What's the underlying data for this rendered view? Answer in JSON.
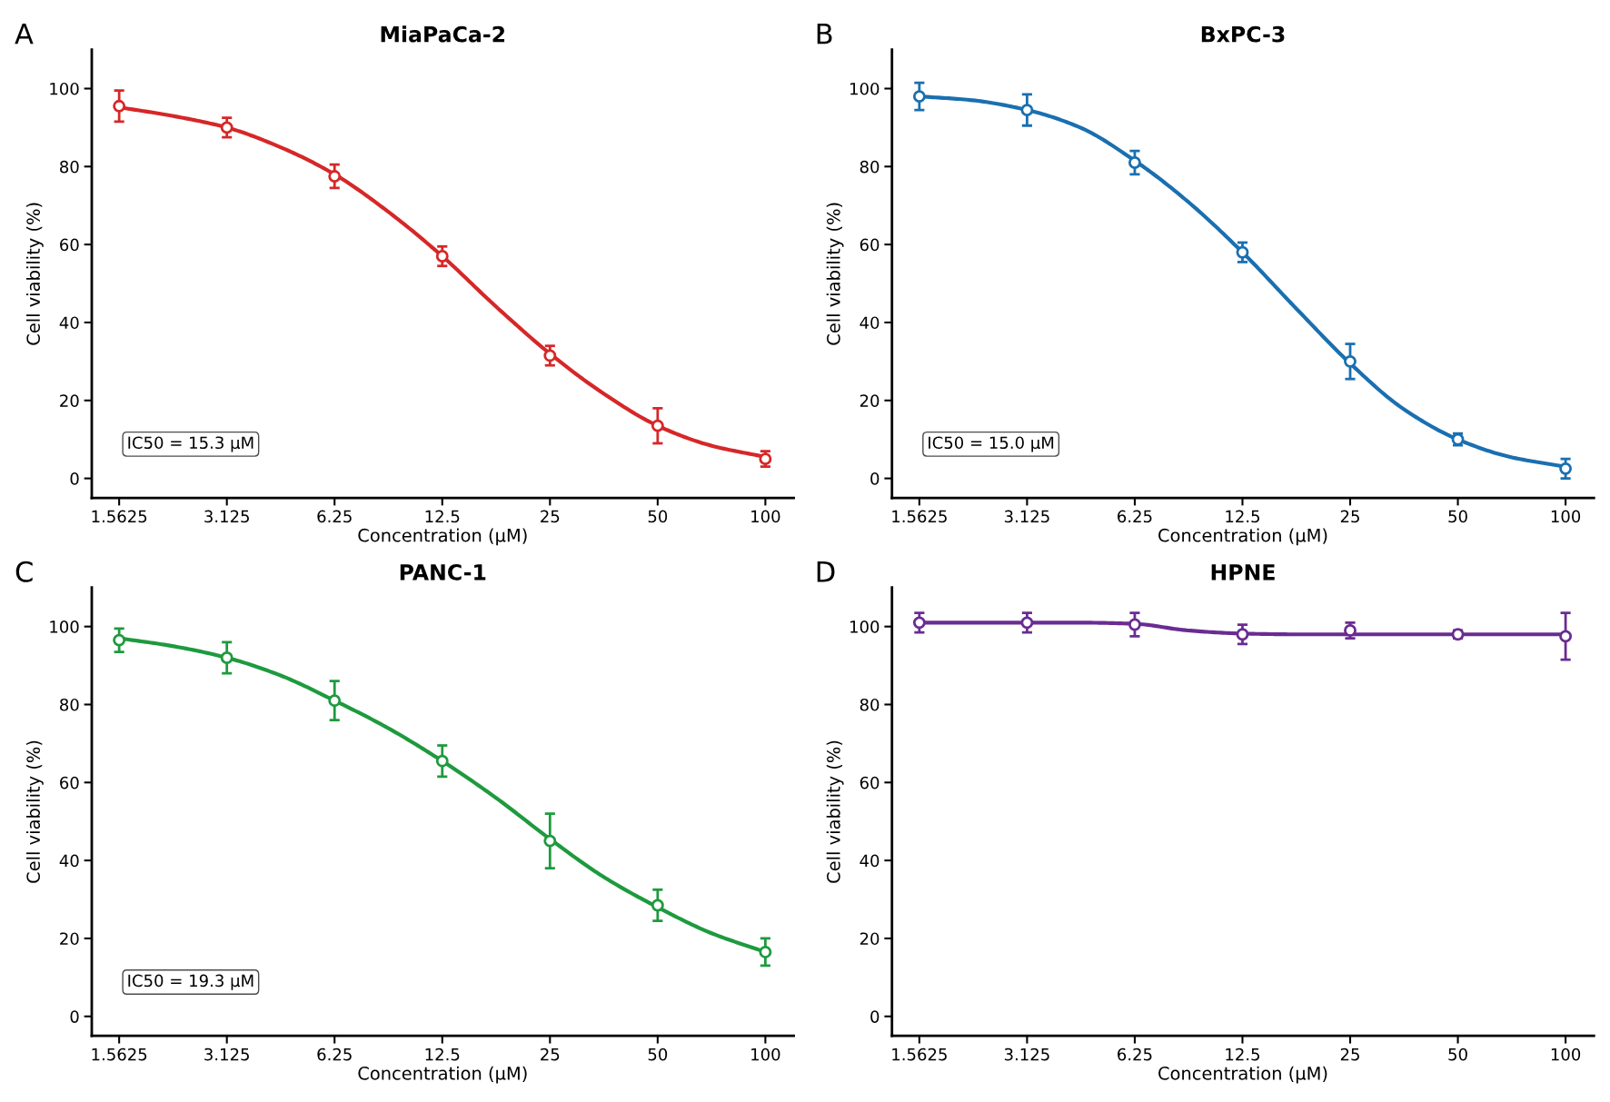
{
  "chart_data": [
    {
      "type": "scatter",
      "title": "MiaPaCa-2",
      "xlabel": "Concentration (μM)",
      "ylabel": "Cell viability (%)",
      "annotations": [
        "A",
        "IC50 = 15.3 μM"
      ],
      "log": "x",
      "xlim": [
        1.31,
        120
      ],
      "xticks": [
        1.5625,
        3.125,
        6.25,
        12.5,
        25,
        50,
        100
      ],
      "ylim": [
        -5,
        110
      ],
      "yticks": [
        0,
        20,
        40,
        60,
        80,
        100
      ],
      "grid": false,
      "series": [
        {
          "marker": "circle",
          "color": "#d62728",
          "x": [
            1.5625,
            3.125,
            6.25,
            12.5,
            25,
            50,
            100
          ],
          "values": [
            95.5,
            90,
            77.5,
            57,
            31.5,
            13.5,
            5
          ],
          "errors": [
            4,
            2.5,
            3,
            2.5,
            2.5,
            4.5,
            2
          ]
        },
        {
          "type": "line",
          "color": "#d62728",
          "line_style": "solid",
          "x": [
            1.5625,
            2.2,
            3.125,
            4.4,
            6.25,
            8.8,
            12.5,
            17.7,
            25,
            35,
            50,
            70,
            100
          ],
          "values": [
            95.2,
            93,
            90,
            85,
            78,
            68.5,
            57,
            44,
            32,
            22,
            13.5,
            8.5,
            5.5
          ]
        }
      ]
    },
    {
      "type": "scatter",
      "title": "BxPC-3",
      "xlabel": "Concentration (μM)",
      "ylabel": "Cell viability (%)",
      "annotations": [
        "B",
        "IC50 = 15.0 μM"
      ],
      "log": "x",
      "xlim": [
        1.31,
        120
      ],
      "xticks": [
        1.5625,
        3.125,
        6.25,
        12.5,
        25,
        50,
        100
      ],
      "ylim": [
        -5,
        110
      ],
      "yticks": [
        0,
        20,
        40,
        60,
        80,
        100
      ],
      "grid": false,
      "series": [
        {
          "marker": "circle",
          "color": "#1a6fb0",
          "x": [
            1.5625,
            3.125,
            6.25,
            12.5,
            25,
            50,
            100
          ],
          "values": [
            98,
            94.5,
            81,
            58,
            30,
            10,
            2.5
          ],
          "errors": [
            3.5,
            4,
            3,
            2.5,
            4.5,
            1.5,
            2.5
          ]
        },
        {
          "type": "line",
          "color": "#1a6fb0",
          "line_style": "solid",
          "x": [
            1.5625,
            2.2,
            3.125,
            4.4,
            6.25,
            8.8,
            12.5,
            17.7,
            25,
            35,
            50,
            70,
            100
          ],
          "values": [
            98,
            97,
            94.5,
            90,
            81.5,
            71,
            58,
            43.5,
            29.5,
            18,
            10,
            5.5,
            3
          ]
        }
      ]
    },
    {
      "type": "scatter",
      "title": "PANC-1",
      "xlabel": "Concentration (μM)",
      "ylabel": "Cell viability (%)",
      "annotations": [
        "C",
        "IC50 = 19.3 μM"
      ],
      "log": "x",
      "xlim": [
        1.31,
        120
      ],
      "xticks": [
        1.5625,
        3.125,
        6.25,
        12.5,
        25,
        50,
        100
      ],
      "ylim": [
        -5,
        110
      ],
      "yticks": [
        0,
        20,
        40,
        60,
        80,
        100
      ],
      "grid": false,
      "series": [
        {
          "marker": "circle",
          "color": "#1e9a3e",
          "x": [
            1.5625,
            3.125,
            6.25,
            12.5,
            25,
            50,
            100
          ],
          "values": [
            96.5,
            92,
            81,
            65.5,
            45,
            28.5,
            16.5
          ],
          "errors": [
            3,
            4,
            5,
            4,
            7,
            4,
            3.5
          ]
        },
        {
          "type": "line",
          "color": "#1e9a3e",
          "line_style": "solid",
          "x": [
            1.5625,
            2.2,
            3.125,
            4.4,
            6.25,
            8.8,
            12.5,
            17.7,
            25,
            35,
            50,
            70,
            100
          ],
          "values": [
            97,
            95,
            92,
            87.5,
            81,
            74,
            65.5,
            56,
            45.5,
            36,
            28,
            21.5,
            16.5
          ]
        }
      ]
    },
    {
      "type": "scatter",
      "title": "HPNE",
      "xlabel": "Concentration (μM)",
      "ylabel": "Cell viability (%)",
      "annotations": [
        "D"
      ],
      "log": "x",
      "xlim": [
        1.31,
        120
      ],
      "xticks": [
        1.5625,
        3.125,
        6.25,
        12.5,
        25,
        50,
        100
      ],
      "ylim": [
        -5,
        110
      ],
      "yticks": [
        0,
        20,
        40,
        60,
        80,
        100
      ],
      "grid": false,
      "series": [
        {
          "marker": "circle",
          "color": "#6a2c91",
          "x": [
            1.5625,
            3.125,
            6.25,
            12.5,
            25,
            50,
            100
          ],
          "values": [
            101,
            101,
            100.5,
            98,
            99,
            98,
            97.5
          ],
          "errors": [
            2.5,
            2.5,
            3,
            2.5,
            2,
            1,
            6
          ]
        },
        {
          "type": "line",
          "color": "#6a2c91",
          "line_style": "solid",
          "x": [
            1.5625,
            2.2,
            3.125,
            4.4,
            6.25,
            8.8,
            12.5,
            17.7,
            25,
            35,
            50,
            70,
            100
          ],
          "values": [
            101,
            101,
            101,
            101,
            100.7,
            99,
            98.2,
            98,
            98,
            98,
            98,
            98,
            98
          ]
        }
      ]
    }
  ]
}
